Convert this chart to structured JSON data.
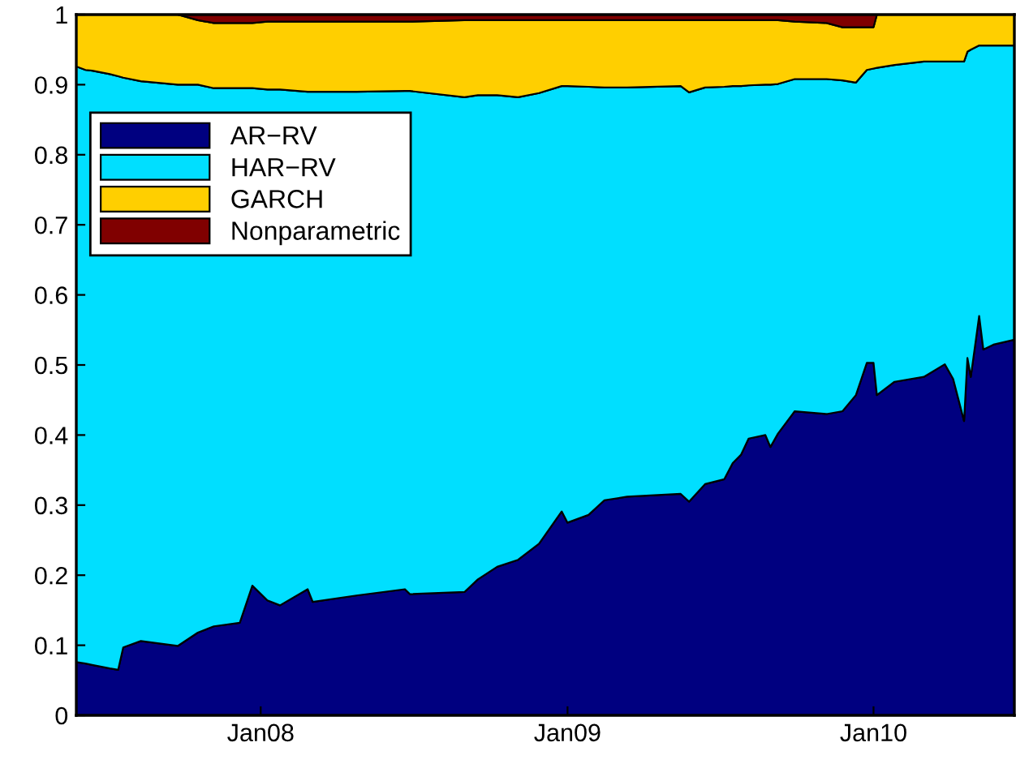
{
  "chart_data": {
    "type": "area",
    "stacked": true,
    "legend": "top left",
    "grid": false,
    "x": [
      "2007-05-26",
      "2007-06-06",
      "2007-06-14",
      "2007-07-05",
      "2007-07-15",
      "2007-07-21",
      "2007-08-11",
      "2007-09-24",
      "2007-10-18",
      "2007-11-06",
      "2007-12-07",
      "2007-12-22",
      "2008-01-09",
      "2008-01-24",
      "2008-02-26",
      "2008-03-03",
      "2008-04-24",
      "2008-06-21",
      "2008-06-27",
      "2008-08-31",
      "2008-09-16",
      "2008-10-09",
      "2008-11-03",
      "2008-11-28",
      "2008-12-25",
      "2009-01-01",
      "2009-01-26",
      "2009-02-14",
      "2009-03-13",
      "2009-05-16",
      "2009-05-26",
      "2009-06-14",
      "2009-07-07",
      "2009-07-17",
      "2009-07-27",
      "2009-08-05",
      "2009-08-25",
      "2009-08-31",
      "2009-09-09",
      "2009-09-29",
      "2009-11-06",
      "2009-11-25",
      "2009-12-11",
      "2009-12-24",
      "2010-01-01",
      "2010-01-05",
      "2010-01-26",
      "2010-03-02",
      "2010-03-27",
      "2010-04-06",
      "2010-04-19",
      "2010-04-23",
      "2010-04-27",
      "2010-05-07",
      "2010-05-12",
      "2010-05-24",
      "2010-06-18"
    ],
    "series": [
      {
        "name": "AR−RV",
        "color": "#000080",
        "values": [
          0.076,
          0.074,
          0.072,
          0.067,
          0.065,
          0.097,
          0.106,
          0.099,
          0.118,
          0.127,
          0.132,
          0.185,
          0.164,
          0.157,
          0.18,
          0.162,
          0.171,
          0.18,
          0.173,
          0.176,
          0.194,
          0.212,
          0.222,
          0.245,
          0.291,
          0.275,
          0.286,
          0.307,
          0.312,
          0.316,
          0.305,
          0.33,
          0.337,
          0.36,
          0.372,
          0.395,
          0.4,
          0.383,
          0.402,
          0.434,
          0.43,
          0.434,
          0.457,
          0.503,
          0.503,
          0.457,
          0.476,
          0.483,
          0.501,
          0.48,
          0.42,
          0.51,
          0.483,
          0.57,
          0.522,
          0.529,
          0.536
        ]
      },
      {
        "name": "HAR−RV",
        "color": "#00dfff",
        "values": [
          0.85,
          0.847,
          0.848,
          0.848,
          0.847,
          0.813,
          0.799,
          0.801,
          0.782,
          0.768,
          0.763,
          0.71,
          0.729,
          0.736,
          0.71,
          0.728,
          0.719,
          0.711,
          0.718,
          0.706,
          0.691,
          0.673,
          0.66,
          0.643,
          0.607,
          0.623,
          0.611,
          0.589,
          0.584,
          0.582,
          0.584,
          0.566,
          0.56,
          0.538,
          0.526,
          0.504,
          0.5,
          0.517,
          0.499,
          0.474,
          0.478,
          0.472,
          0.446,
          0.418,
          0.42,
          0.467,
          0.452,
          0.45,
          0.432,
          0.453,
          0.513,
          0.437,
          0.467,
          0.386,
          0.434,
          0.427,
          0.42
        ]
      },
      {
        "name": "GARCH",
        "color": "#ffcf00",
        "values": [
          0.074,
          0.079,
          0.08,
          0.085,
          0.088,
          0.09,
          0.095,
          0.1,
          0.092,
          0.093,
          0.093,
          0.093,
          0.097,
          0.097,
          0.1,
          0.1,
          0.1,
          0.099,
          0.099,
          0.11,
          0.107,
          0.107,
          0.11,
          0.104,
          0.094,
          0.094,
          0.095,
          0.096,
          0.096,
          0.094,
          0.103,
          0.096,
          0.095,
          0.094,
          0.094,
          0.093,
          0.092,
          0.092,
          0.091,
          0.082,
          0.08,
          0.076,
          0.079,
          0.061,
          0.059,
          0.076,
          0.072,
          0.067,
          0.067,
          0.067,
          0.067,
          0.053,
          0.05,
          0.044,
          0.044,
          0.044,
          0.044
        ]
      },
      {
        "name": "Nonparametric",
        "color": "#800000",
        "values": [
          0,
          0,
          0,
          0,
          0,
          0,
          0,
          0,
          0.008,
          0.012,
          0.012,
          0.012,
          0.01,
          0.01,
          0.01,
          0.01,
          0.01,
          0.01,
          0.01,
          0.008,
          0.008,
          0.008,
          0.008,
          0.008,
          0.008,
          0.008,
          0.008,
          0.008,
          0.008,
          0.008,
          0.008,
          0.008,
          0.008,
          0.008,
          0.008,
          0.008,
          0.008,
          0.008,
          0.008,
          0.01,
          0.012,
          0.018,
          0.018,
          0.018,
          0.018,
          0,
          0,
          0,
          0,
          0,
          0,
          0,
          0,
          0,
          0,
          0,
          0
        ]
      }
    ],
    "xlim": [
      "2007-05-26",
      "2010-06-18"
    ],
    "xticks": [
      {
        "value": "2008-01-01",
        "label": "Jan08"
      },
      {
        "value": "2009-01-01",
        "label": "Jan09"
      },
      {
        "value": "2010-01-01",
        "label": "Jan10"
      }
    ],
    "ylim": [
      0,
      1
    ],
    "yticks": [
      0,
      0.1,
      0.2,
      0.3,
      0.4,
      0.5,
      0.6,
      0.7,
      0.8,
      0.9,
      1
    ]
  }
}
